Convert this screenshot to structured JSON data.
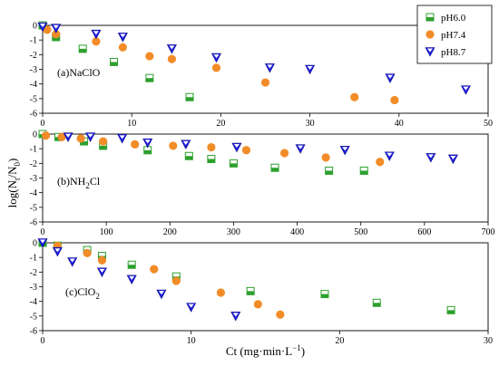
{
  "chart_data": [
    {
      "type": "scatter",
      "panel_label": "(a)NaClO",
      "xlim": [
        0,
        50
      ],
      "ylim": [
        -6,
        0
      ],
      "xticks": [
        "0",
        "10",
        "20",
        "30",
        "40",
        "50"
      ],
      "yticks": [
        "0",
        "-1",
        "-2",
        "-3",
        "-4",
        "-5",
        "-6"
      ],
      "series": [
        {
          "name": "pH6.0",
          "marker": "square",
          "color": "#2ca02c",
          "points": [
            [
              0,
              0
            ],
            [
              1.5,
              -0.8
            ],
            [
              4.5,
              -1.6
            ],
            [
              8,
              -2.5
            ],
            [
              12,
              -3.6
            ],
            [
              16.5,
              -4.9
            ]
          ]
        },
        {
          "name": "pH7.4",
          "marker": "circle",
          "color": "#f28c28",
          "points": [
            [
              0.5,
              -0.3
            ],
            [
              1.5,
              -0.6
            ],
            [
              6,
              -1.1
            ],
            [
              9,
              -1.5
            ],
            [
              12,
              -2.1
            ],
            [
              14.5,
              -2.3
            ],
            [
              19.5,
              -2.9
            ],
            [
              25,
              -3.9
            ],
            [
              35,
              -4.9
            ],
            [
              39.5,
              -5.1
            ]
          ]
        },
        {
          "name": "pH8.7",
          "marker": "triangle-down",
          "color": "#1f1fe0",
          "points": [
            [
              0,
              -0.1
            ],
            [
              1.5,
              -0.2
            ],
            [
              6,
              -0.6
            ],
            [
              9,
              -0.8
            ],
            [
              14.5,
              -1.6
            ],
            [
              19.5,
              -2.2
            ],
            [
              25.5,
              -2.9
            ],
            [
              30,
              -3.0
            ],
            [
              39,
              -3.6
            ],
            [
              47.5,
              -4.4
            ]
          ]
        }
      ]
    },
    {
      "type": "scatter",
      "panel_label_main": "(b)NH",
      "panel_label_sub": "2",
      "panel_label_tail": "Cl",
      "xlim": [
        0,
        700
      ],
      "ylim": [
        -6,
        0
      ],
      "xticks": [
        "0",
        "100",
        "200",
        "300",
        "400",
        "500",
        "600",
        "700"
      ],
      "yticks": [
        "0",
        "-1",
        "-2",
        "-3",
        "-4",
        "-5",
        "-6"
      ],
      "series": [
        {
          "name": "pH6.0",
          "marker": "square",
          "color": "#2ca02c",
          "points": [
            [
              0,
              0
            ],
            [
              25,
              -0.2
            ],
            [
              65,
              -0.5
            ],
            [
              95,
              -0.8
            ],
            [
              165,
              -1.1
            ],
            [
              230,
              -1.5
            ],
            [
              265,
              -1.7
            ],
            [
              300,
              -2.0
            ],
            [
              365,
              -2.3
            ],
            [
              450,
              -2.5
            ],
            [
              505,
              -2.5
            ]
          ]
        },
        {
          "name": "pH7.4",
          "marker": "circle",
          "color": "#f28c28",
          "points": [
            [
              5,
              -0.1
            ],
            [
              30,
              -0.2
            ],
            [
              60,
              -0.3
            ],
            [
              95,
              -0.5
            ],
            [
              145,
              -0.7
            ],
            [
              205,
              -0.8
            ],
            [
              265,
              -0.9
            ],
            [
              320,
              -1.1
            ],
            [
              380,
              -1.3
            ],
            [
              445,
              -1.6
            ],
            [
              530,
              -1.9
            ]
          ]
        },
        {
          "name": "pH8.7",
          "marker": "triangle-down",
          "color": "#1f1fe0",
          "points": [
            [
              40,
              -0.2
            ],
            [
              75,
              -0.2
            ],
            [
              125,
              -0.3
            ],
            [
              165,
              -0.6
            ],
            [
              225,
              -0.7
            ],
            [
              305,
              -0.9
            ],
            [
              405,
              -1.0
            ],
            [
              475,
              -1.1
            ],
            [
              545,
              -1.5
            ],
            [
              610,
              -1.6
            ],
            [
              645,
              -1.7
            ]
          ]
        }
      ]
    },
    {
      "type": "scatter",
      "panel_label_main": "(c)ClO",
      "panel_label_sub": "2",
      "panel_label_tail": "",
      "xlim": [
        0,
        30
      ],
      "ylim": [
        -6,
        0
      ],
      "xticks": [
        "0",
        "10",
        "20",
        "30"
      ],
      "yticks": [
        "0",
        "-1",
        "-2",
        "-3",
        "-4",
        "-5",
        "-6"
      ],
      "xlabel_main": "Ct (mg·min·L",
      "xlabel_sup": "−1",
      "xlabel_tail": ")",
      "series": [
        {
          "name": "pH6.0",
          "marker": "square",
          "color": "#2ca02c",
          "points": [
            [
              0,
              0
            ],
            [
              1,
              -0.2
            ],
            [
              3,
              -0.5
            ],
            [
              4,
              -0.9
            ],
            [
              6,
              -1.5
            ],
            [
              9,
              -2.3
            ],
            [
              14,
              -3.3
            ],
            [
              19,
              -3.5
            ],
            [
              22.5,
              -4.1
            ],
            [
              27.5,
              -4.6
            ]
          ]
        },
        {
          "name": "pH7.4",
          "marker": "circle",
          "color": "#f28c28",
          "points": [
            [
              1,
              -0.2
            ],
            [
              3,
              -0.7
            ],
            [
              4,
              -1.2
            ],
            [
              7.5,
              -1.8
            ],
            [
              9,
              -2.6
            ],
            [
              12,
              -3.4
            ],
            [
              14.5,
              -4.2
            ],
            [
              16,
              -4.9
            ]
          ]
        },
        {
          "name": "pH8.7",
          "marker": "triangle-down",
          "color": "#1f1fe0",
          "points": [
            [
              0,
              0
            ],
            [
              1,
              -0.6
            ],
            [
              2,
              -1.3
            ],
            [
              4,
              -2.0
            ],
            [
              6,
              -2.5
            ],
            [
              8,
              -3.5
            ],
            [
              10,
              -4.4
            ],
            [
              13,
              -5.0
            ]
          ]
        }
      ]
    }
  ],
  "ylabel_main": "log(N",
  "ylabel_sub1": "t",
  "ylabel_mid": "/N",
  "ylabel_sub2": "0",
  "ylabel_tail": ")",
  "legend": [
    {
      "name": "pH6.0",
      "marker": "square",
      "color": "#2ca02c"
    },
    {
      "name": "pH7.4",
      "marker": "circle",
      "color": "#f28c28"
    },
    {
      "name": "pH8.7",
      "marker": "triangle-down",
      "color": "#1f1fe0"
    }
  ]
}
